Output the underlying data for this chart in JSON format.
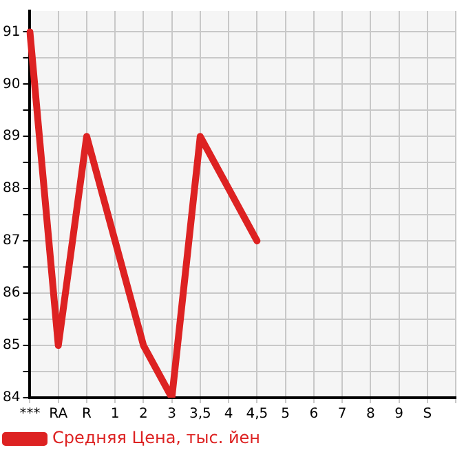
{
  "chart_data": {
    "type": "line",
    "categories": [
      "***",
      "RA",
      "R",
      "1",
      "2",
      "3",
      "3,5",
      "4",
      "4,5",
      "5",
      "6",
      "7",
      "8",
      "9",
      "S",
      null
    ],
    "series": [
      {
        "name": "Средняя Цена, тыс. йен",
        "color": "#dd2222",
        "values": [
          91,
          85,
          89,
          87,
          85,
          84,
          89,
          88,
          87,
          null,
          null,
          null,
          null,
          null,
          null,
          null
        ]
      }
    ],
    "ylim": [
      84,
      91.4
    ],
    "yticks": [
      84,
      {
        "value": 84.5,
        "label": null
      },
      85,
      {
        "value": 85.5,
        "label": null
      },
      86,
      {
        "value": 86.5,
        "label": null
      },
      87,
      {
        "value": 87.5,
        "label": null
      },
      88,
      {
        "value": 88.5,
        "label": null
      },
      89,
      {
        "value": 89.5,
        "label": null
      },
      90,
      {
        "value": 90.5,
        "label": null
      },
      91
    ],
    "grid": true,
    "legend": "bottom left",
    "marker": "none",
    "line_style": "solid"
  }
}
